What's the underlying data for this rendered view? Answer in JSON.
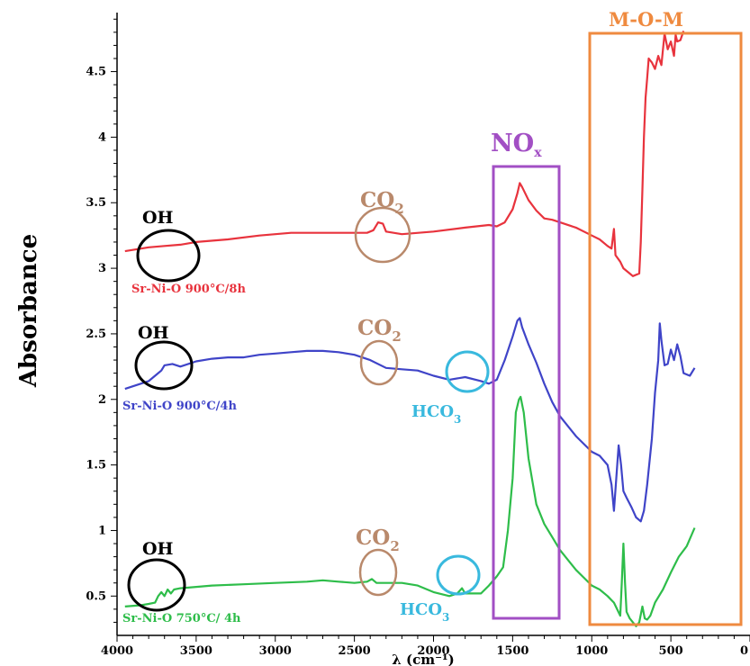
{
  "chart_data": {
    "type": "line",
    "title": "",
    "xlabel": "λ (cm⁻¹)",
    "ylabel": "Absorbance",
    "xlim": [
      4000,
      0
    ],
    "ylim": [
      0.2,
      4.95
    ],
    "x_ticks": [
      4000,
      3500,
      3000,
      2500,
      2000,
      1500,
      1000,
      500,
      0
    ],
    "x_tick_labels": [
      "4000",
      "3500",
      "3000",
      "2500",
      "2000",
      "1500",
      "1000",
      "500",
      "0"
    ],
    "y_ticks": [
      0.5,
      1,
      1.5,
      2,
      2.5,
      3,
      3.5,
      4,
      4.5
    ],
    "y_tick_labels": [
      "0.5",
      "1",
      "1.5",
      "2",
      "2.5",
      "3",
      "3.5",
      "4",
      "4.5"
    ],
    "grid": false,
    "series": [
      {
        "name": "Sr-Ni-O 900°C/8h",
        "color": "#e8333d",
        "points": [
          [
            3950,
            3.13
          ],
          [
            3800,
            3.16
          ],
          [
            3700,
            3.17
          ],
          [
            3600,
            3.18
          ],
          [
            3500,
            3.2
          ],
          [
            3300,
            3.22
          ],
          [
            3100,
            3.25
          ],
          [
            2900,
            3.27
          ],
          [
            2700,
            3.27
          ],
          [
            2500,
            3.27
          ],
          [
            2420,
            3.27
          ],
          [
            2380,
            3.29
          ],
          [
            2350,
            3.35
          ],
          [
            2320,
            3.34
          ],
          [
            2300,
            3.28
          ],
          [
            2200,
            3.26
          ],
          [
            2000,
            3.28
          ],
          [
            1800,
            3.31
          ],
          [
            1650,
            3.33
          ],
          [
            1600,
            3.32
          ],
          [
            1550,
            3.35
          ],
          [
            1500,
            3.45
          ],
          [
            1470,
            3.57
          ],
          [
            1455,
            3.65
          ],
          [
            1440,
            3.62
          ],
          [
            1400,
            3.52
          ],
          [
            1350,
            3.44
          ],
          [
            1300,
            3.38
          ],
          [
            1250,
            3.37
          ],
          [
            1200,
            3.35
          ],
          [
            1100,
            3.31
          ],
          [
            1000,
            3.25
          ],
          [
            950,
            3.22
          ],
          [
            900,
            3.17
          ],
          [
            875,
            3.15
          ],
          [
            860,
            3.3
          ],
          [
            850,
            3.1
          ],
          [
            820,
            3.05
          ],
          [
            800,
            3.0
          ],
          [
            760,
            2.96
          ],
          [
            740,
            2.94
          ],
          [
            700,
            2.96
          ],
          [
            690,
            3.2
          ],
          [
            680,
            3.6
          ],
          [
            670,
            4.0
          ],
          [
            660,
            4.3
          ],
          [
            650,
            4.45
          ],
          [
            640,
            4.6
          ],
          [
            620,
            4.57
          ],
          [
            600,
            4.52
          ],
          [
            580,
            4.62
          ],
          [
            560,
            4.55
          ],
          [
            540,
            4.79
          ],
          [
            520,
            4.67
          ],
          [
            500,
            4.73
          ],
          [
            480,
            4.62
          ],
          [
            470,
            4.78
          ],
          [
            460,
            4.73
          ],
          [
            440,
            4.74
          ],
          [
            420,
            4.81
          ]
        ]
      },
      {
        "name": "Sr-Ni-O 900°C/4h",
        "color": "#3f44c8",
        "points": [
          [
            3950,
            2.08
          ],
          [
            3850,
            2.12
          ],
          [
            3800,
            2.14
          ],
          [
            3750,
            2.19
          ],
          [
            3720,
            2.22
          ],
          [
            3700,
            2.26
          ],
          [
            3650,
            2.27
          ],
          [
            3600,
            2.25
          ],
          [
            3500,
            2.29
          ],
          [
            3400,
            2.31
          ],
          [
            3300,
            2.32
          ],
          [
            3200,
            2.32
          ],
          [
            3100,
            2.34
          ],
          [
            3000,
            2.35
          ],
          [
            2900,
            2.36
          ],
          [
            2800,
            2.37
          ],
          [
            2700,
            2.37
          ],
          [
            2600,
            2.36
          ],
          [
            2500,
            2.34
          ],
          [
            2400,
            2.3
          ],
          [
            2300,
            2.24
          ],
          [
            2200,
            2.23
          ],
          [
            2100,
            2.22
          ],
          [
            2000,
            2.18
          ],
          [
            1900,
            2.15
          ],
          [
            1800,
            2.17
          ],
          [
            1700,
            2.14
          ],
          [
            1650,
            2.12
          ],
          [
            1600,
            2.15
          ],
          [
            1550,
            2.3
          ],
          [
            1500,
            2.48
          ],
          [
            1470,
            2.6
          ],
          [
            1455,
            2.62
          ],
          [
            1440,
            2.55
          ],
          [
            1400,
            2.42
          ],
          [
            1350,
            2.28
          ],
          [
            1300,
            2.12
          ],
          [
            1250,
            1.98
          ],
          [
            1200,
            1.87
          ],
          [
            1100,
            1.72
          ],
          [
            1000,
            1.6
          ],
          [
            950,
            1.57
          ],
          [
            900,
            1.5
          ],
          [
            875,
            1.35
          ],
          [
            860,
            1.15
          ],
          [
            845,
            1.4
          ],
          [
            830,
            1.65
          ],
          [
            815,
            1.5
          ],
          [
            800,
            1.3
          ],
          [
            780,
            1.25
          ],
          [
            750,
            1.18
          ],
          [
            720,
            1.1
          ],
          [
            690,
            1.07
          ],
          [
            670,
            1.15
          ],
          [
            650,
            1.35
          ],
          [
            620,
            1.7
          ],
          [
            600,
            2.05
          ],
          [
            580,
            2.3
          ],
          [
            570,
            2.58
          ],
          [
            560,
            2.45
          ],
          [
            540,
            2.26
          ],
          [
            520,
            2.27
          ],
          [
            500,
            2.38
          ],
          [
            480,
            2.3
          ],
          [
            460,
            2.42
          ],
          [
            440,
            2.33
          ],
          [
            420,
            2.2
          ],
          [
            380,
            2.18
          ],
          [
            350,
            2.24
          ]
        ]
      },
      {
        "name": "Sr-Ni-O 750°C/ 4h",
        "color": "#2ebd4a",
        "points": [
          [
            3950,
            0.42
          ],
          [
            3850,
            0.43
          ],
          [
            3800,
            0.44
          ],
          [
            3760,
            0.45
          ],
          [
            3740,
            0.5
          ],
          [
            3720,
            0.53
          ],
          [
            3700,
            0.5
          ],
          [
            3680,
            0.55
          ],
          [
            3660,
            0.52
          ],
          [
            3640,
            0.55
          ],
          [
            3600,
            0.56
          ],
          [
            3500,
            0.57
          ],
          [
            3400,
            0.58
          ],
          [
            3200,
            0.59
          ],
          [
            3000,
            0.6
          ],
          [
            2800,
            0.61
          ],
          [
            2700,
            0.62
          ],
          [
            2600,
            0.61
          ],
          [
            2500,
            0.6
          ],
          [
            2420,
            0.61
          ],
          [
            2390,
            0.63
          ],
          [
            2360,
            0.6
          ],
          [
            2300,
            0.6
          ],
          [
            2200,
            0.6
          ],
          [
            2100,
            0.58
          ],
          [
            2000,
            0.53
          ],
          [
            1900,
            0.5
          ],
          [
            1850,
            0.52
          ],
          [
            1820,
            0.56
          ],
          [
            1800,
            0.52
          ],
          [
            1700,
            0.52
          ],
          [
            1650,
            0.58
          ],
          [
            1600,
            0.65
          ],
          [
            1560,
            0.72
          ],
          [
            1530,
            1.0
          ],
          [
            1500,
            1.4
          ],
          [
            1480,
            1.9
          ],
          [
            1460,
            2.0
          ],
          [
            1450,
            2.02
          ],
          [
            1430,
            1.9
          ],
          [
            1400,
            1.55
          ],
          [
            1350,
            1.2
          ],
          [
            1300,
            1.05
          ],
          [
            1250,
            0.95
          ],
          [
            1200,
            0.85
          ],
          [
            1100,
            0.7
          ],
          [
            1000,
            0.58
          ],
          [
            950,
            0.55
          ],
          [
            900,
            0.5
          ],
          [
            860,
            0.45
          ],
          [
            840,
            0.4
          ],
          [
            820,
            0.35
          ],
          [
            810,
            0.6
          ],
          [
            800,
            0.9
          ],
          [
            790,
            0.6
          ],
          [
            780,
            0.38
          ],
          [
            760,
            0.33
          ],
          [
            740,
            0.3
          ],
          [
            720,
            0.27
          ],
          [
            700,
            0.3
          ],
          [
            680,
            0.42
          ],
          [
            665,
            0.33
          ],
          [
            650,
            0.32
          ],
          [
            630,
            0.35
          ],
          [
            600,
            0.45
          ],
          [
            550,
            0.55
          ],
          [
            500,
            0.68
          ],
          [
            450,
            0.8
          ],
          [
            400,
            0.88
          ],
          [
            350,
            1.02
          ]
        ]
      }
    ],
    "annotations": [
      {
        "text": "OH",
        "color": "#000000"
      },
      {
        "text": "OH",
        "color": "#000000"
      },
      {
        "text": "OH",
        "color": "#000000"
      },
      {
        "text": "CO2",
        "color": "#b9896b"
      },
      {
        "text": "CO2",
        "color": "#b9896b"
      },
      {
        "text": "CO2",
        "color": "#b9896b"
      },
      {
        "text": "HCO3",
        "color": "#39b9de"
      },
      {
        "text": "HCO3",
        "color": "#39b9de"
      },
      {
        "text": "NOx",
        "color": "#a24fc4"
      },
      {
        "text": "M-O-M",
        "color": "#ef8a3f"
      }
    ]
  }
}
